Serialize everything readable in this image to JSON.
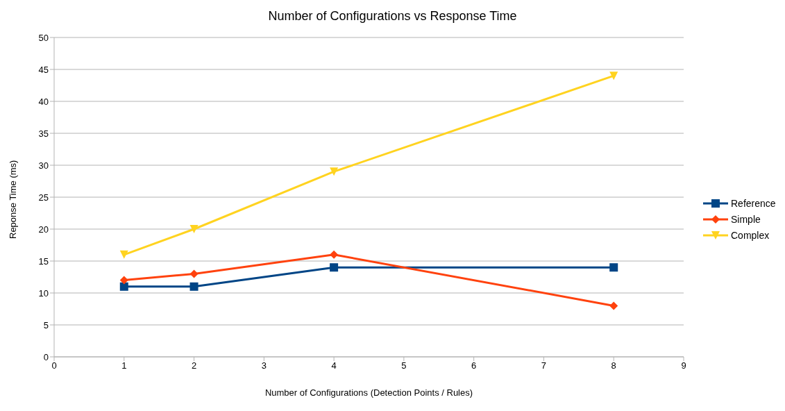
{
  "chart_data": {
    "type": "line",
    "title": "Number of Configurations vs Response Time",
    "xlabel": "Number of Configurations (Detection Points / Rules)",
    "ylabel": "Reponse Time (ms)",
    "x": [
      1,
      2,
      4,
      8
    ],
    "series": [
      {
        "name": "Reference",
        "color": "#004586",
        "values": [
          11,
          11,
          14,
          14
        ],
        "marker": "square"
      },
      {
        "name": "Simple",
        "color": "#ff420e",
        "values": [
          12,
          13,
          16,
          8
        ],
        "marker": "diamond"
      },
      {
        "name": "Complex",
        "color": "#ffd320",
        "values": [
          16,
          20,
          29,
          44
        ],
        "marker": "triangle"
      }
    ],
    "xlim": [
      0,
      9
    ],
    "xticks": [
      0,
      1,
      2,
      3,
      4,
      5,
      6,
      7,
      8,
      9
    ],
    "ylim": [
      0,
      50
    ],
    "yticks": [
      0,
      5,
      10,
      15,
      20,
      25,
      30,
      35,
      40,
      45,
      50
    ],
    "grid": "y",
    "legend": "right",
    "line_style": "solid"
  }
}
